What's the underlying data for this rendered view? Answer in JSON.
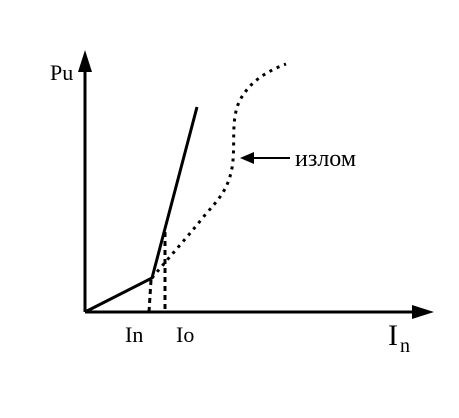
{
  "axes": {
    "y_label": "Pu",
    "x_label": "I",
    "x_label_subscript": "n"
  },
  "ticks": [
    "In",
    "Io"
  ],
  "annotation": "излом"
}
